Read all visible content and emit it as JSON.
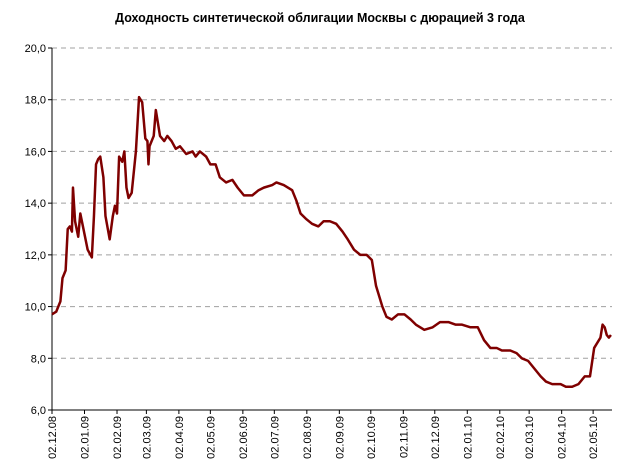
{
  "chart_data": {
    "type": "line",
    "title": "Доходность синтетической облигации Москвы с дюрацией 3 года",
    "x": [
      "02.12.08",
      "06.12.08",
      "10.12.08",
      "12.12.08",
      "15.12.08",
      "17.12.08",
      "19.12.08",
      "21.12.08",
      "22.12.08",
      "24.12.08",
      "27.12.08",
      "29.12.08",
      "01.01.09",
      "05.01.09",
      "09.01.09",
      "11.01.09",
      "13.01.09",
      "15.01.09",
      "17.01.09",
      "20.01.09",
      "22.01.09",
      "26.01.09",
      "29.01.09",
      "31.01.09",
      "02.02.09",
      "04.02.09",
      "07.02.09",
      "09.02.09",
      "11.02.09",
      "13.02.09",
      "16.02.09",
      "20.02.09",
      "23.02.09",
      "26.02.09",
      "01.03.09",
      "03.03.09",
      "04.03.09",
      "05.03.09",
      "09.03.09",
      "11.03.09",
      "15.03.09",
      "19.03.09",
      "22.03.09",
      "26.03.09",
      "30.03.09",
      "03.04.09",
      "09.04.09",
      "15.04.09",
      "18.04.09",
      "22.04.09",
      "28.04.09",
      "02.05.09",
      "07.05.09",
      "11.05.09",
      "17.05.09",
      "23.05.09",
      "28.05.09",
      "03.06.09",
      "11.06.09",
      "17.06.09",
      "22.06.09",
      "30.06.09",
      "04.07.09",
      "11.07.09",
      "19.07.09",
      "23.07.09",
      "27.07.09",
      "01.08.09",
      "07.08.09",
      "13.08.09",
      "18.08.09",
      "24.08.09",
      "30.08.09",
      "05.09.09",
      "10.09.09",
      "16.09.09",
      "22.09.09",
      "28.09.09",
      "03.10.09",
      "07.10.09",
      "13.10.09",
      "17.10.09",
      "22.10.09",
      "28.10.09",
      "03.11.09",
      "09.11.09",
      "14.11.09",
      "22.11.09",
      "30.11.09",
      "07.12.09",
      "15.12.09",
      "22.12.09",
      "28.12.09",
      "05.01.10",
      "12.01.10",
      "18.01.10",
      "24.01.10",
      "30.01.10",
      "04.02.10",
      "12.02.10",
      "18.02.10",
      "23.02.10",
      "01.03.10",
      "07.03.10",
      "13.03.10",
      "18.03.10",
      "24.03.10",
      "01.04.10",
      "06.04.10",
      "12.04.10",
      "18.04.10",
      "24.04.10",
      "29.04.10",
      "03.05.10",
      "09.05.10",
      "11.05.10",
      "13.05.10",
      "15.05.10",
      "17.05.10",
      "19.05.10"
    ],
    "series": [
      {
        "name": "Доходность",
        "color": "#7f0000",
        "values": [
          9.7,
          9.8,
          10.2,
          11.1,
          11.4,
          13.0,
          13.1,
          12.9,
          14.6,
          13.3,
          12.7,
          13.6,
          13.0,
          12.2,
          11.9,
          13.5,
          15.5,
          15.7,
          15.8,
          15.0,
          13.5,
          12.6,
          13.5,
          13.9,
          13.6,
          15.8,
          15.6,
          16.0,
          14.6,
          14.2,
          14.4,
          16.0,
          18.1,
          17.9,
          16.5,
          16.4,
          15.5,
          16.2,
          16.6,
          17.6,
          16.6,
          16.4,
          16.6,
          16.4,
          16.1,
          16.2,
          15.9,
          16.0,
          15.8,
          16.0,
          15.8,
          15.5,
          15.5,
          15.0,
          14.8,
          14.9,
          14.6,
          14.3,
          14.3,
          14.5,
          14.6,
          14.7,
          14.8,
          14.7,
          14.5,
          14.1,
          13.6,
          13.4,
          13.2,
          13.1,
          13.3,
          13.3,
          13.2,
          12.9,
          12.6,
          12.2,
          12.0,
          12.0,
          11.8,
          10.8,
          10.0,
          9.6,
          9.5,
          9.7,
          9.7,
          9.5,
          9.3,
          9.1,
          9.2,
          9.4,
          9.4,
          9.3,
          9.3,
          9.2,
          9.2,
          8.7,
          8.4,
          8.4,
          8.3,
          8.3,
          8.2,
          8.0,
          7.9,
          7.6,
          7.3,
          7.1,
          7.0,
          7.0,
          6.9,
          6.9,
          7.0,
          7.3,
          7.3,
          8.4,
          8.8,
          9.3,
          9.2,
          8.9,
          8.8,
          8.9
        ]
      }
    ],
    "xlim": [
      "02.12.08",
      "20.05.10"
    ],
    "xticks": [
      "02.12.08",
      "02.01.09",
      "02.02.09",
      "02.03.09",
      "02.04.09",
      "02.05.09",
      "02.06.09",
      "02.07.09",
      "02.08.09",
      "02.09.09",
      "02.10.09",
      "02.11.09",
      "02.12.09",
      "02.01.10",
      "02.02.10",
      "02.03.10",
      "02.04.10",
      "02.05.10"
    ],
    "ylim": [
      6,
      20
    ],
    "yticks": [
      {
        "value": 6,
        "label": "6,0"
      },
      {
        "value": 8,
        "label": "8,0"
      },
      {
        "value": 10,
        "label": "10,0"
      },
      {
        "value": 12,
        "label": "12,0"
      },
      {
        "value": 14,
        "label": "14,0"
      },
      {
        "value": 16,
        "label": "16,0"
      },
      {
        "value": 18,
        "label": "18,0"
      },
      {
        "value": 20,
        "label": "20,0"
      }
    ],
    "grid": true
  }
}
